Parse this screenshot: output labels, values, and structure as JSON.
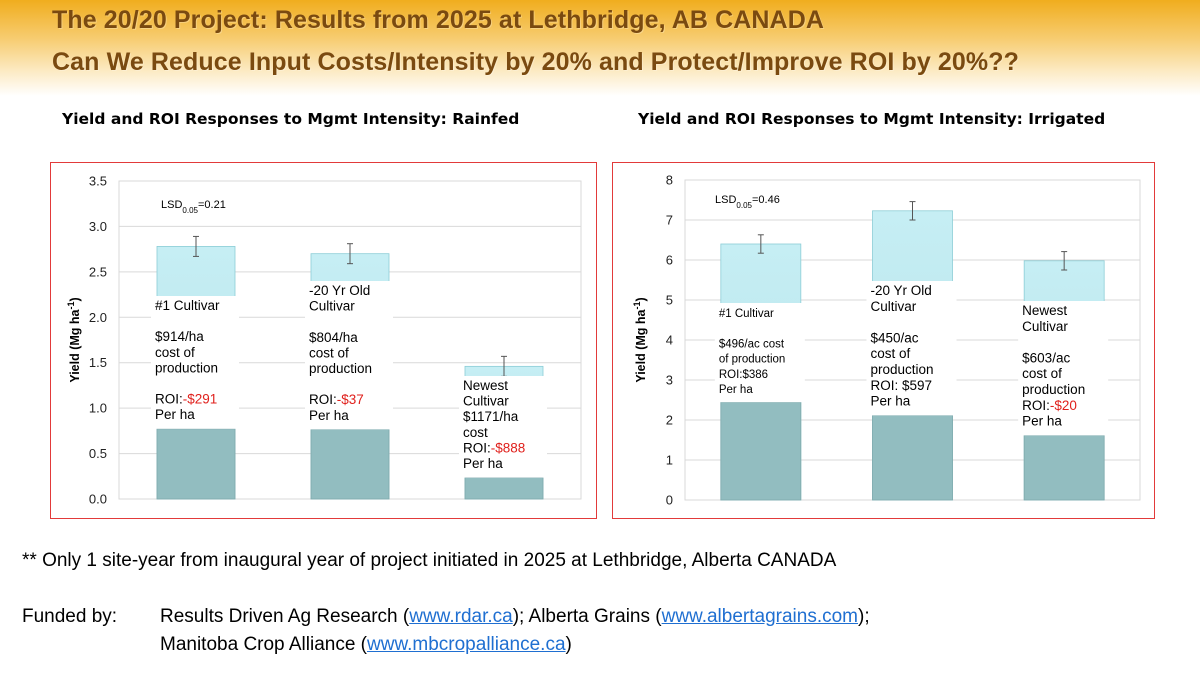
{
  "header": {
    "title_line1": "The 20/20 Project: Results from 2025 at Lethbridge, AB CANADA",
    "title_line2": "Can We Reduce Input Costs/Intensity by 20% and Protect/Improve ROI by 20%??"
  },
  "colors": {
    "bar_top": "#c6eef4",
    "bar_bottom": "#92bdc0",
    "frame_border": "#e23a3a",
    "roi_negative": "#e0201c",
    "link": "#1f6fd1"
  },
  "chart_data": [
    {
      "type": "bar",
      "title": "Yield and ROI Responses to Mgmt Intensity: Rainfed",
      "ylabel": "Yield (Mg ha-1)",
      "ylim": [
        0,
        3.5
      ],
      "yticks": [
        "0.0",
        "0.5",
        "1.0",
        "1.5",
        "2.0",
        "2.5",
        "3.0",
        "3.5"
      ],
      "ytick_values": [
        0,
        0.5,
        1.0,
        1.5,
        2.0,
        2.5,
        3.0,
        3.5
      ],
      "lsd": {
        "prefix": "LSD",
        "sub": "0.05",
        "value": "=0.21"
      },
      "categories": [
        "#1 Cultivar",
        "-20 Yr Old Cultivar",
        "Newest Cultivar"
      ],
      "values": [
        2.78,
        2.7,
        1.46
      ],
      "errors": [
        0.11,
        0.11,
        0.11
      ],
      "annotations": [
        {
          "lines": [
            "#1 Cultivar",
            "",
            "$914/ha",
            "cost of",
            "production",
            "",
            "ROI:-$291",
            "Per ha"
          ],
          "red_line": 6,
          "roi_label": "ROI:",
          "roi_value": "-$291"
        },
        {
          "lines": [
            "-20 Yr Old",
            "Cultivar",
            "",
            "$804/ha",
            "cost of",
            "production",
            "",
            "ROI:-$37",
            "Per ha"
          ],
          "red_line": 7,
          "roi_label": "ROI:",
          "roi_value": "-$37"
        },
        {
          "lines": [
            "Newest",
            "Cultivar",
            "$1171/ha",
            "cost",
            "ROI:-$888",
            "Per ha"
          ],
          "red_line": 4,
          "roi_label": "ROI:",
          "roi_value": "-$888"
        }
      ]
    },
    {
      "type": "bar",
      "title": "Yield and ROI Responses to Mgmt Intensity: Irrigated",
      "ylabel": "Yield (Mg ha-1)",
      "ylim": [
        0,
        8
      ],
      "yticks": [
        "0",
        "1",
        "2",
        "3",
        "4",
        "5",
        "6",
        "7",
        "8"
      ],
      "ytick_values": [
        0,
        1,
        2,
        3,
        4,
        5,
        6,
        7,
        8
      ],
      "lsd": {
        "prefix": "LSD",
        "sub": "0.05",
        "value": "=0.46"
      },
      "categories": [
        "#1 Cultivar",
        "-20 Yr Old Cultivar",
        "Newest Cultivar"
      ],
      "values": [
        6.4,
        7.23,
        5.98
      ],
      "errors": [
        0.23,
        0.23,
        0.23
      ],
      "annotations": [
        {
          "lines": [
            "#1 Cultivar",
            "",
            "$496/ac cost",
            "of production",
            "ROI:$386",
            "Per ha"
          ],
          "red_line": -1,
          "roi_label": "ROI:",
          "roi_value": "$386"
        },
        {
          "lines": [
            "-20 Yr Old",
            "Cultivar",
            "",
            "$450/ac",
            "cost of",
            "production",
            "ROI: $597",
            "Per ha"
          ],
          "red_line": -1,
          "roi_label": "ROI:",
          "roi_value": " $597"
        },
        {
          "lines": [
            "Newest",
            "Cultivar",
            "",
            "$603/ac",
            "cost of",
            "production",
            "ROI:-$20",
            "Per ha"
          ],
          "red_line": 6,
          "roi_label": "ROI:",
          "roi_value": "-$20"
        }
      ]
    }
  ],
  "footnote": "** Only 1 site-year from inaugural year of project initiated in 2025 at Lethbridge, Alberta CANADA",
  "funding": {
    "label": "Funded by:",
    "line1_pre": "Results Driven Ag Research (",
    "link1": "www.rdar.ca",
    "line1_mid": "); Alberta Grains (",
    "link2": "www.albertagrains.com",
    "line1_post": ");",
    "line2_pre": "Manitoba Crop Alliance (",
    "link3": "www.mbcropalliance.ca",
    "line2_post": ")"
  }
}
